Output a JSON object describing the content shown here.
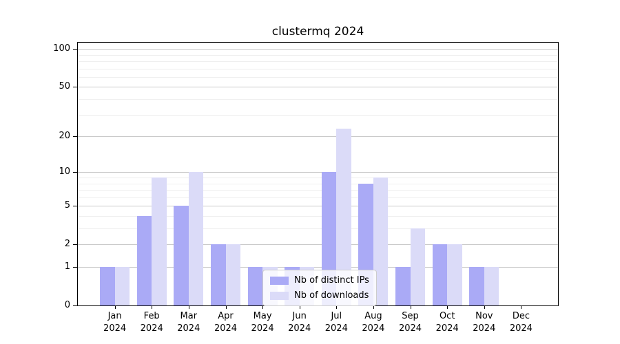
{
  "chart_data": {
    "type": "bar",
    "title": "clustermq 2024",
    "categories": [
      {
        "month": "Jan",
        "year": "2024"
      },
      {
        "month": "Feb",
        "year": "2024"
      },
      {
        "month": "Mar",
        "year": "2024"
      },
      {
        "month": "Apr",
        "year": "2024"
      },
      {
        "month": "May",
        "year": "2024"
      },
      {
        "month": "Jun",
        "year": "2024"
      },
      {
        "month": "Jul",
        "year": "2024"
      },
      {
        "month": "Aug",
        "year": "2024"
      },
      {
        "month": "Sep",
        "year": "2024"
      },
      {
        "month": "Oct",
        "year": "2024"
      },
      {
        "month": "Nov",
        "year": "2024"
      },
      {
        "month": "Dec",
        "year": "2024"
      }
    ],
    "series": [
      {
        "name": "Nb of distinct IPs",
        "color": "#aaaaf6",
        "values": [
          1,
          4,
          5,
          2,
          1,
          1,
          10,
          8,
          1,
          2,
          1,
          0
        ]
      },
      {
        "name": "Nb of downloads",
        "color": "#dbdbf8",
        "values": [
          1,
          9,
          10,
          2,
          1,
          1,
          23,
          9,
          3,
          2,
          1,
          0
        ]
      }
    ],
    "xlabel": "",
    "ylabel": "",
    "y_scale": "log1p",
    "y_axis": {
      "ticks": [
        0,
        1,
        2,
        5,
        10,
        20,
        50,
        100
      ],
      "minor_gridlines": [
        3,
        4,
        6,
        7,
        8,
        9,
        30,
        40,
        60,
        70,
        80,
        90
      ],
      "range": [
        0,
        112
      ]
    },
    "grid": "on",
    "legend_position": "lower center",
    "colors": {
      "spine": "#000000",
      "major_grid": "#c9c9c9",
      "minor_grid": "#efefef",
      "legend_border": "#cccccc",
      "background": "#ffffff"
    }
  }
}
